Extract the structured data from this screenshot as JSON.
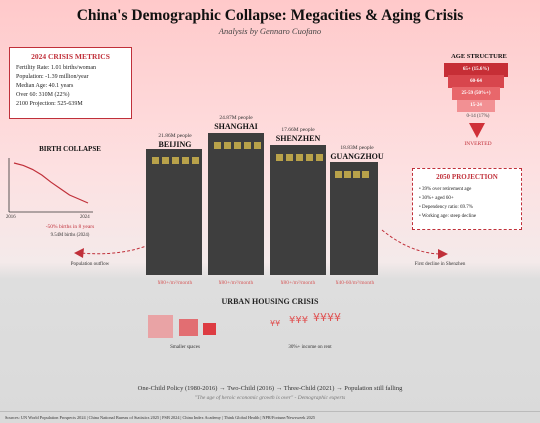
{
  "header": {
    "title": "China's Demographic Collapse: Megacities & Aging Crisis",
    "subtitle": "Analysis by Gennaro Cuofano"
  },
  "metrics": {
    "heading": "2024 CRISIS METRICS",
    "lines": [
      "Fertility Rate: 1.01 births/woman",
      "Population: -1.39 million/year",
      "Median Age: 40.1 years",
      "Over 60: 310M (22%)",
      "2100 Projection: 525-639M"
    ]
  },
  "age_structure": {
    "heading": "AGE STRUCTURE",
    "tiers": [
      {
        "label": "65+ (15.6%)",
        "color": "#c62e36"
      },
      {
        "label": "60-64",
        "color": "#d8464d"
      },
      {
        "label": "25-59 (8%%+)",
        "color": "#e8676b"
      },
      {
        "label": "15-24",
        "color": "#f29093"
      }
    ],
    "bottom_label": "0-14 (17%)",
    "inverted_label": "INVERTED",
    "arrow_icon": "down-arrow-icon"
  },
  "birth": {
    "heading": "BIRTH COLLAPSE",
    "year_start": "2016",
    "year_end": "2024",
    "drop_label": "-50% births in 8 years",
    "births_label": "9.54M births (2024)",
    "outflow_label": "Population outflow",
    "trend": [
      1.0,
      0.97,
      0.92,
      0.85,
      0.76,
      0.68,
      0.6,
      0.55,
      0.5
    ]
  },
  "cities": [
    {
      "pop": "21.86M people",
      "name": "BEIJING",
      "rent": "¥80+/m²/month"
    },
    {
      "pop": "24.87M people",
      "name": "SHANGHAI",
      "rent": "¥80+/m²/month"
    },
    {
      "pop": "17.66M people",
      "name": "SHENZHEN",
      "rent": "¥80+/m²/month"
    },
    {
      "pop": "18.83M people",
      "name": "GUANGZHOU",
      "rent": "¥40-60/m²/month"
    }
  ],
  "projection": {
    "heading": "2050 PROJECTION",
    "lines": [
      "• 39% over retirement age",
      "• 30%+ aged 60+",
      "• Dependency ratio: 69.7%",
      "• Working age: steep decline"
    ],
    "decline_label": "First decline in Shenzhen"
  },
  "housing": {
    "heading": "URBAN HOUSING CRISIS",
    "smaller_label": "Smaller spaces",
    "income_label": "30%+ income on rent",
    "yen": [
      "¥¥",
      "¥¥¥",
      "¥¥¥¥"
    ],
    "colors": [
      "#e9a3a5",
      "#e26e72",
      "#dd3c42"
    ]
  },
  "footer": {
    "policy": "One-Child Policy (1980-2016) → Two-Child (2016) → Three-Child (2021) → Population still falling",
    "quote": "\"The age of heroic economic growth is over\" - Demographic experts",
    "sources": "Sources: UN World Population Prospects 2024 | China National Bureau of Statistics 2025 | PSB 2024 | China Index Academy | Think Global Health | NPR/Fortune/Newsweek 2025"
  }
}
